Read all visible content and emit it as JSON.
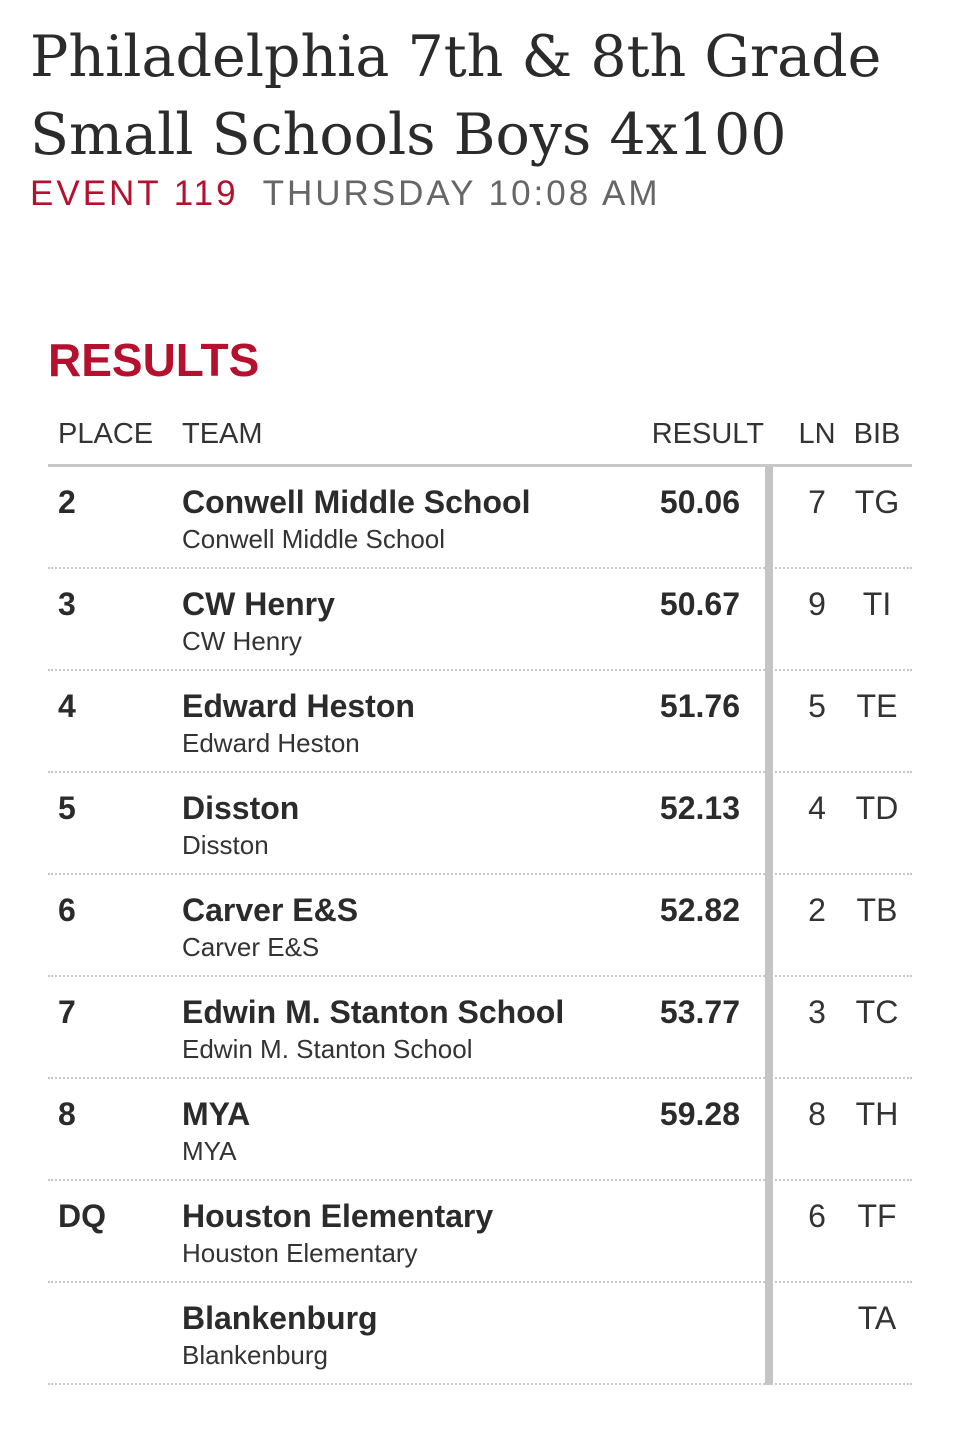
{
  "event": {
    "title": "Philadelphia 7th & 8th Grade Small Schools Boys 4x100",
    "number": "EVENT 119",
    "time": "THURSDAY 10:08 AM"
  },
  "results": {
    "heading": "RESULTS",
    "columns": {
      "place": "PLACE",
      "team": "TEAM",
      "result": "RESULT",
      "ln": "LN",
      "bib": "BIB"
    },
    "rows": [
      {
        "place": "2",
        "team": "Conwell Middle School",
        "team_sub": "Conwell Middle School",
        "result": "50.06",
        "ln": "7",
        "bib": "TG"
      },
      {
        "place": "3",
        "team": "CW Henry",
        "team_sub": "CW Henry",
        "result": "50.67",
        "ln": "9",
        "bib": "TI"
      },
      {
        "place": "4",
        "team": "Edward Heston",
        "team_sub": "Edward Heston",
        "result": "51.76",
        "ln": "5",
        "bib": "TE"
      },
      {
        "place": "5",
        "team": "Disston",
        "team_sub": "Disston",
        "result": "52.13",
        "ln": "4",
        "bib": "TD"
      },
      {
        "place": "6",
        "team": "Carver E&S",
        "team_sub": "Carver E&S",
        "result": "52.82",
        "ln": "2",
        "bib": "TB"
      },
      {
        "place": "7",
        "team": "Edwin M. Stanton School",
        "team_sub": "Edwin M. Stanton School",
        "result": "53.77",
        "ln": "3",
        "bib": "TC"
      },
      {
        "place": "8",
        "team": "MYA",
        "team_sub": "MYA",
        "result": "59.28",
        "ln": "8",
        "bib": "TH"
      },
      {
        "place": "DQ",
        "team": "Houston Elementary",
        "team_sub": "Houston Elementary",
        "result": "",
        "ln": "6",
        "bib": "TF"
      },
      {
        "place": "",
        "team": "Blankenburg",
        "team_sub": "Blankenburg",
        "result": "",
        "ln": "",
        "bib": "TA"
      }
    ]
  },
  "colors": {
    "accent": "#b5112f",
    "text": "#2b2b2b",
    "muted": "#666666",
    "rule": "#c4c4c4"
  }
}
